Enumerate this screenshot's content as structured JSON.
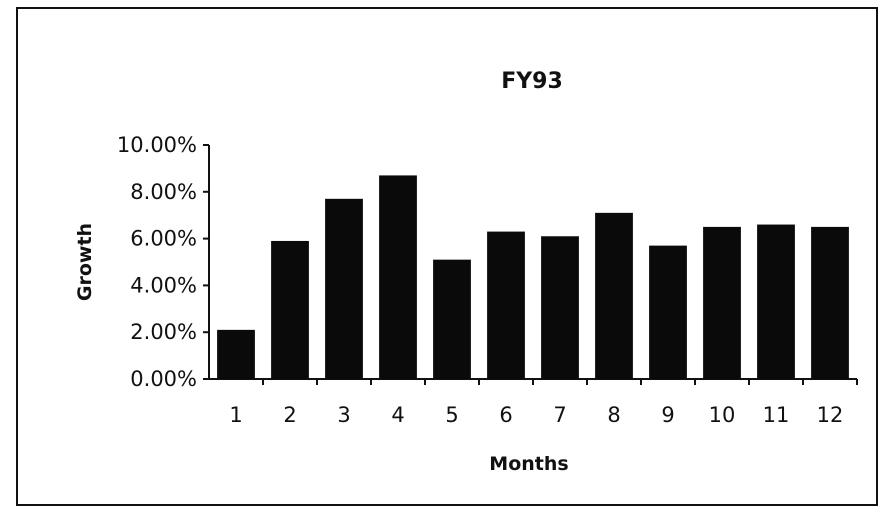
{
  "chart_data": {
    "type": "bar",
    "title": "FY93",
    "xlabel": "Months",
    "ylabel": "Growth",
    "categories": [
      "1",
      "2",
      "3",
      "4",
      "5",
      "6",
      "7",
      "8",
      "9",
      "10",
      "11",
      "12"
    ],
    "values": [
      0.021,
      0.059,
      0.077,
      0.087,
      0.051,
      0.063,
      0.061,
      0.071,
      0.057,
      0.065,
      0.066,
      0.065
    ],
    "ylim": [
      0,
      0.1
    ],
    "yticks": [
      "0.00%",
      "2.00%",
      "4.00%",
      "6.00%",
      "8.00%",
      "10.00%"
    ],
    "ytick_values": [
      0,
      0.02,
      0.04,
      0.06,
      0.08,
      0.1
    ],
    "grid": false,
    "bar_color": "#0a0a0a"
  }
}
